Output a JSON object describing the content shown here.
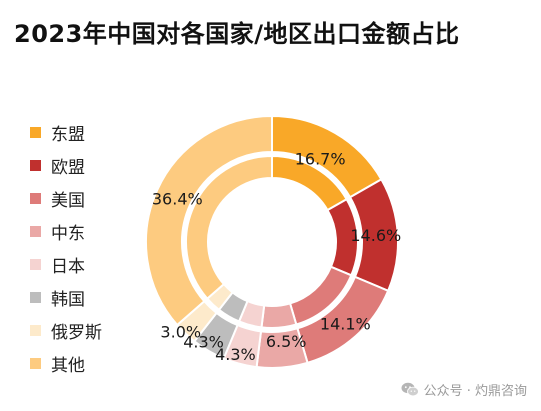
{
  "title": "2023年中国对各国家/地区出口金额占比",
  "watermark": {
    "text": "公众号 · 灼鼎咨询",
    "icon": "wechat-icon"
  },
  "chart_data": {
    "type": "pie",
    "style": "double-ring donut",
    "title": "2023年中国对各国家/地区出口金额占比",
    "legend_position": "left",
    "series": [
      {
        "name": "",
        "ring": "outer",
        "categories": [
          "东盟",
          "欧盟",
          "美国",
          "中东",
          "日本",
          "韩国",
          "俄罗斯",
          "其他"
        ],
        "values": [
          16.7,
          14.6,
          14.1,
          6.5,
          4.3,
          4.3,
          3.0,
          36.4
        ],
        "labels": [
          "16.7%",
          "14.6%",
          "14.1%",
          "6.5%",
          "4.3%",
          "4.3%",
          "3.0%",
          "36.4%"
        ]
      },
      {
        "name": "",
        "ring": "inner",
        "categories": [
          "东盟",
          "欧盟",
          "美国",
          "中东",
          "日本",
          "韩国",
          "俄罗斯",
          "其他"
        ],
        "values": [
          16.7,
          14.6,
          14.1,
          6.5,
          4.3,
          4.3,
          3.0,
          36.4
        ]
      }
    ],
    "legend": [
      {
        "label": "东盟",
        "color": "#F9A828"
      },
      {
        "label": "欧盟",
        "color": "#C0302E"
      },
      {
        "label": "美国",
        "color": "#DE7B79"
      },
      {
        "label": "中东",
        "color": "#EAA8A6"
      },
      {
        "label": "日本",
        "color": "#F5D3D1"
      },
      {
        "label": "韩国",
        "color": "#BDBDBD"
      },
      {
        "label": "俄罗斯",
        "color": "#FDEACB"
      },
      {
        "label": "其他",
        "color": "#FDCB80"
      }
    ]
  }
}
